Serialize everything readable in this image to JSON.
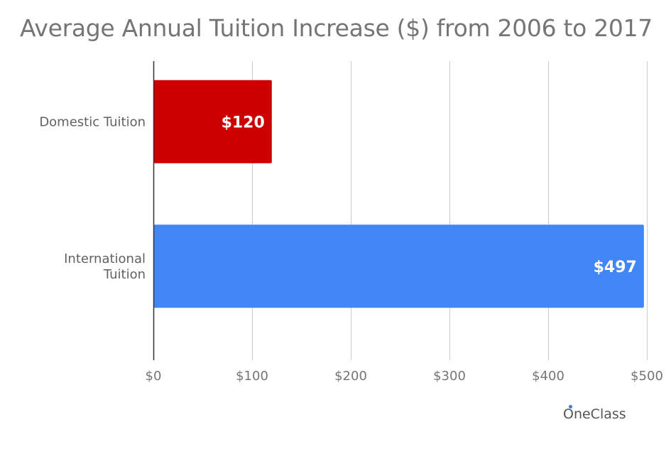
{
  "title": "Average Annual Tuition Increase ($) from 2006 to 2017",
  "watermark": "OneClass",
  "colors": {
    "domestic": "#cc0000",
    "international": "#4285f4",
    "grid": "#cccccc",
    "axis": "#333333",
    "watermark_dot": "#3a7bd5"
  },
  "chart_data": {
    "type": "bar",
    "orientation": "horizontal",
    "title": "Average Annual Tuition Increase ($) from 2006 to 2017",
    "categories": [
      [
        "Domestic Tuition"
      ],
      [
        "International",
        "Tuition"
      ]
    ],
    "values": [
      120,
      497
    ],
    "data_labels": [
      "$120",
      "$497"
    ],
    "bar_colors": [
      "#cc0000",
      "#4285f4"
    ],
    "xlim": [
      0,
      500
    ],
    "x_ticks": [
      0,
      100,
      200,
      300,
      400,
      500
    ],
    "x_tick_labels": [
      "$0",
      "$100",
      "$200",
      "$300",
      "$400",
      "$500"
    ],
    "xlabel": "",
    "ylabel": "",
    "grid": true,
    "legend": "none"
  }
}
